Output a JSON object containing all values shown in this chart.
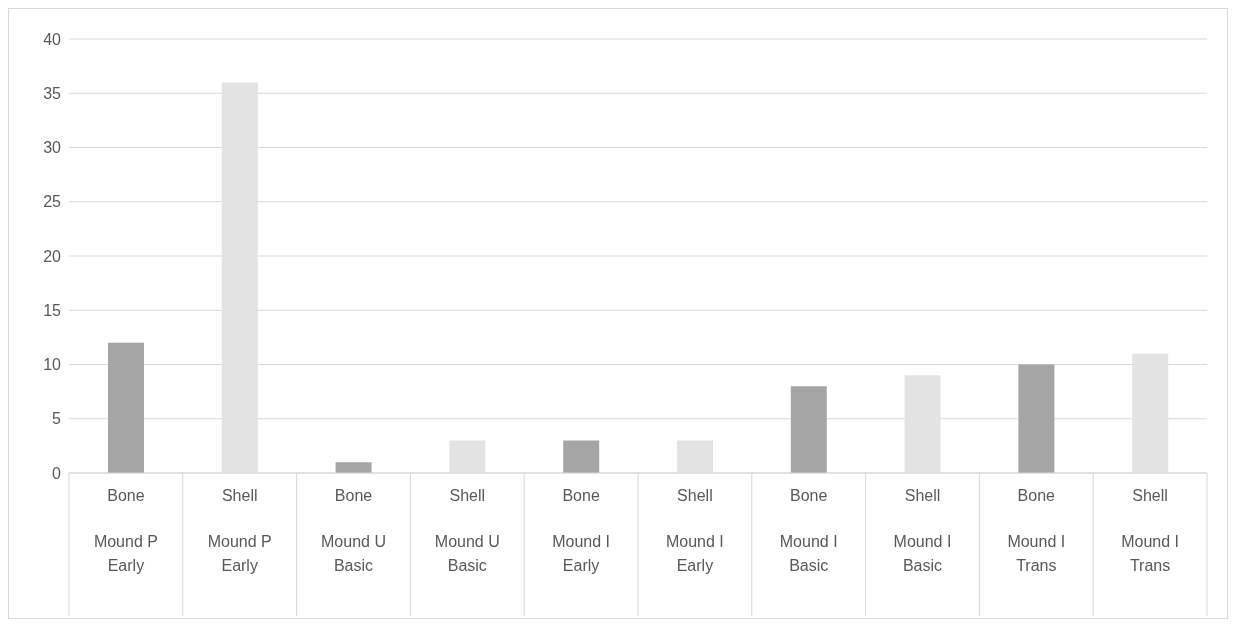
{
  "chart_data": {
    "type": "bar",
    "categories": [
      "Bone\nMound P Early",
      "Shell\nMound P Early",
      "Bone\nMound U Basic",
      "Shell\nMound U Basic",
      "Bone\nMound I Early",
      "Shell\nMound I Early",
      "Bone\nMound I Basic",
      "Shell\nMound I Basic",
      "Bone\nMound I Trans",
      "Shell\nMound I Trans"
    ],
    "values": [
      12,
      36,
      1,
      3,
      3,
      3,
      8,
      9,
      10,
      11
    ],
    "colors": [
      "#a5a5a5",
      "#e3e3e3",
      "#a5a5a5",
      "#e3e3e3",
      "#a5a5a5",
      "#e3e3e3",
      "#a5a5a5",
      "#e3e3e3",
      "#a5a5a5",
      "#e3e3e3"
    ],
    "ylim": [
      0,
      40
    ],
    "yticks": [
      0,
      5,
      10,
      15,
      20,
      25,
      30,
      35,
      40
    ],
    "grid": "y"
  }
}
